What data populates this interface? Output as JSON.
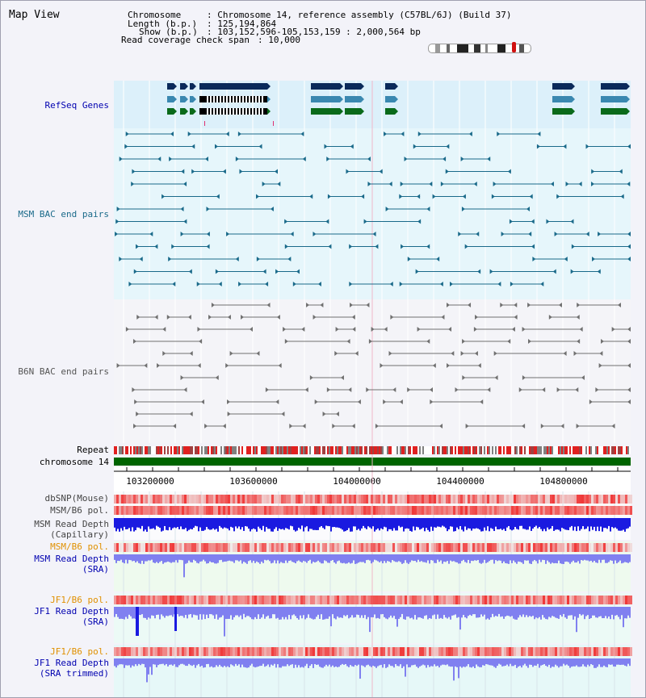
{
  "title": "Map View",
  "info": {
    "chromosome_key": "Chromosome",
    "chromosome_val": ": Chromosome 14, reference assembly (C57BL/6J) (Build 37)",
    "length_key": "Length (b.p.)",
    "length_val": ": 125,194,864",
    "show_key": "Show (b.p.)",
    "show_val": ": 103,152,596-105,153,159 : 2,000,564 bp",
    "read_key": "Read coverage check span",
    "read_val": ": 10,000"
  },
  "tracks": {
    "refseq": "RefSeq Genes",
    "msm_bac": "MSM BAC end pairs",
    "b6n_bac": "B6N BAC end pairs",
    "repeat": "Repeat",
    "chromosome": "chromosome 14",
    "dbsnp": "dbSNP(Mouse)",
    "msm_b6_pol": "MSM/B6 pol.",
    "msm_depth_cap_1": "MSM Read Depth",
    "msm_depth_cap_2": "(Capillary)",
    "msm_b6_pol_2": "MSM/B6 pol.",
    "msm_depth_sra_1": "MSM Read Depth",
    "msm_depth_sra_2": "(SRA)",
    "jf1_b6_pol": "JF1/B6 pol.",
    "jf1_depth_sra_1": "JF1 Read Depth",
    "jf1_depth_sra_2": "(SRA)",
    "jf1_b6_pol_2": "JF1/B6 pol.",
    "jf1_depth_trim_1": "JF1 Read Depth",
    "jf1_depth_trim_2": "(SRA trimmed)"
  },
  "axis": {
    "ticks": [
      "103200000",
      "103600000",
      "104000000",
      "104400000",
      "104800000"
    ]
  },
  "colors": {
    "refseq_bg": "#dcf0fa",
    "msm_bg": "#e6f6fb",
    "b6n_bg": "#f4f4f8",
    "gene_dark": "#0a2a5a",
    "gene_mid": "#3a88b0",
    "gene_green": "#0a6a1a",
    "msm_line": "#1a6a8a",
    "b6n_line": "#707070",
    "chromosome_bar": "#006400",
    "snp_red": "#e83030",
    "depth_blue": "#1a1ae0",
    "depth_light": "#8080f0",
    "label_blue": "#0000b0",
    "label_orange": "#e09000"
  }
}
